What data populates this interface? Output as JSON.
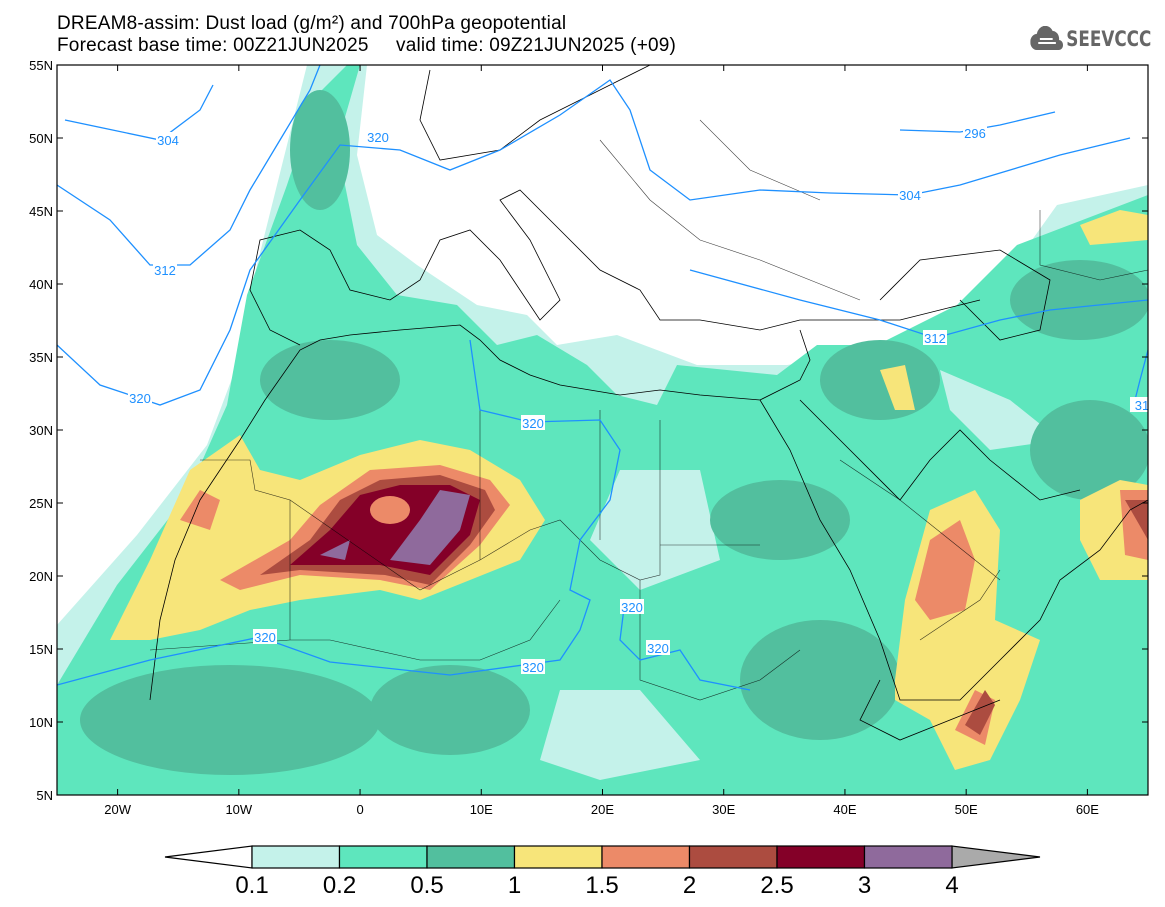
{
  "header": {
    "title_line1": "DREAM8-assim: Dust load (g/m²) and 700hPa geopotential",
    "title_line2": "Forecast base time: 00Z21JUN2025     valid time: 09Z21JUN2025 (+09)",
    "logo_text": "SEEVCCC"
  },
  "axes": {
    "lat_labels": [
      "55N",
      "50N",
      "45N",
      "40N",
      "35N",
      "30N",
      "25N",
      "20N",
      "15N",
      "10N",
      "5N"
    ],
    "lon_labels": [
      "20W",
      "10W",
      "0",
      "10E",
      "20E",
      "30E",
      "40E",
      "50E",
      "60E"
    ],
    "lon_range": [
      -25,
      65
    ],
    "lat_range": [
      5,
      55
    ]
  },
  "contour_labels": [
    "304",
    "312",
    "320",
    "320",
    "320",
    "320",
    "320",
    "320",
    "320",
    "296",
    "304",
    "312",
    "31"
  ],
  "colorbar": {
    "labels": [
      "0.1",
      "0.2",
      "0.5",
      "1",
      "1.5",
      "2",
      "2.5",
      "3",
      "4"
    ],
    "colors": [
      "#c4f2ea",
      "#5ee6bd",
      "#52bf9e",
      "#f7e57a",
      "#ec8a68",
      "#ac4c40",
      "#840028",
      "#8f6a9c"
    ],
    "under_color": "#ffffff",
    "over_color": "#aaaaaa"
  },
  "contour_color": "#1e90ff"
}
